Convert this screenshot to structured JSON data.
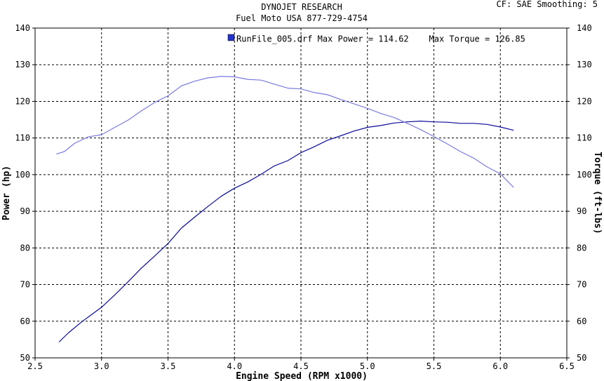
{
  "header": {
    "title_line1": "DYNOJET RESEARCH",
    "title_line2": "Fuel Moto USA 877-729-4754",
    "info": "CF: SAE  Smoothing: 5"
  },
  "legend": {
    "text": "RunFile_005.drf Max Power = 114.62    Max Torque = 126.85",
    "swatch_color": "#2233cc"
  },
  "chart_data": {
    "type": "line",
    "title": "DYNOJET RESEARCH / Fuel Moto USA 877-729-4754",
    "xlabel": "Engine Speed (RPM x1000)",
    "ylabel": "Power (hp)",
    "y2label": "Torque (ft-lbs)",
    "xlim": [
      2.5,
      6.5
    ],
    "ylim": [
      50,
      140
    ],
    "y2lim": [
      50,
      140
    ],
    "x_ticks": [
      "2.5",
      "3.0",
      "3.5",
      "4.0",
      "4.5",
      "5.0",
      "5.5",
      "6.0",
      "6.5"
    ],
    "y_ticks": [
      "50",
      "60",
      "70",
      "80",
      "90",
      "100",
      "110",
      "120",
      "130",
      "140"
    ],
    "grid": true,
    "series": [
      {
        "name": "Power",
        "axis": "left",
        "color": "#0a0a9a",
        "x": [
          2.68,
          2.75,
          2.85,
          3.0,
          3.1,
          3.2,
          3.3,
          3.4,
          3.5,
          3.6,
          3.7,
          3.8,
          3.9,
          4.0,
          4.1,
          4.2,
          4.3,
          4.4,
          4.5,
          4.6,
          4.7,
          4.8,
          4.9,
          5.0,
          5.1,
          5.2,
          5.3,
          5.4,
          5.5,
          5.6,
          5.7,
          5.8,
          5.9,
          6.0,
          6.1
        ],
        "y": [
          54.3,
          56.8,
          59.8,
          63.8,
          67.2,
          70.8,
          74.5,
          77.8,
          81.2,
          85.4,
          88.4,
          91.3,
          94.1,
          96.3,
          98.0,
          100.1,
          102.4,
          103.8,
          106.0,
          107.6,
          109.4,
          110.6,
          111.9,
          112.9,
          113.4,
          114.1,
          114.4,
          114.6,
          114.4,
          114.3,
          114.0,
          114.0,
          113.7,
          113.0,
          112.1
        ]
      },
      {
        "name": "Torque",
        "axis": "right",
        "color": "#7a7ade",
        "x": [
          2.66,
          2.72,
          2.8,
          2.9,
          3.0,
          3.1,
          3.2,
          3.3,
          3.4,
          3.5,
          3.6,
          3.7,
          3.8,
          3.9,
          4.0,
          4.1,
          4.2,
          4.3,
          4.4,
          4.5,
          4.6,
          4.7,
          4.8,
          4.9,
          5.0,
          5.1,
          5.2,
          5.3,
          5.4,
          5.5,
          5.6,
          5.7,
          5.8,
          5.9,
          6.0,
          6.1
        ],
        "y": [
          105.6,
          106.3,
          108.6,
          110.3,
          110.9,
          112.9,
          114.9,
          117.4,
          119.7,
          121.5,
          124.2,
          125.5,
          126.4,
          126.8,
          126.7,
          126.0,
          125.8,
          124.7,
          123.6,
          123.4,
          122.4,
          121.8,
          120.5,
          119.3,
          118.1,
          116.7,
          115.6,
          114.0,
          112.3,
          110.4,
          108.4,
          106.3,
          104.5,
          102.1,
          100.2,
          96.5
        ]
      }
    ]
  }
}
